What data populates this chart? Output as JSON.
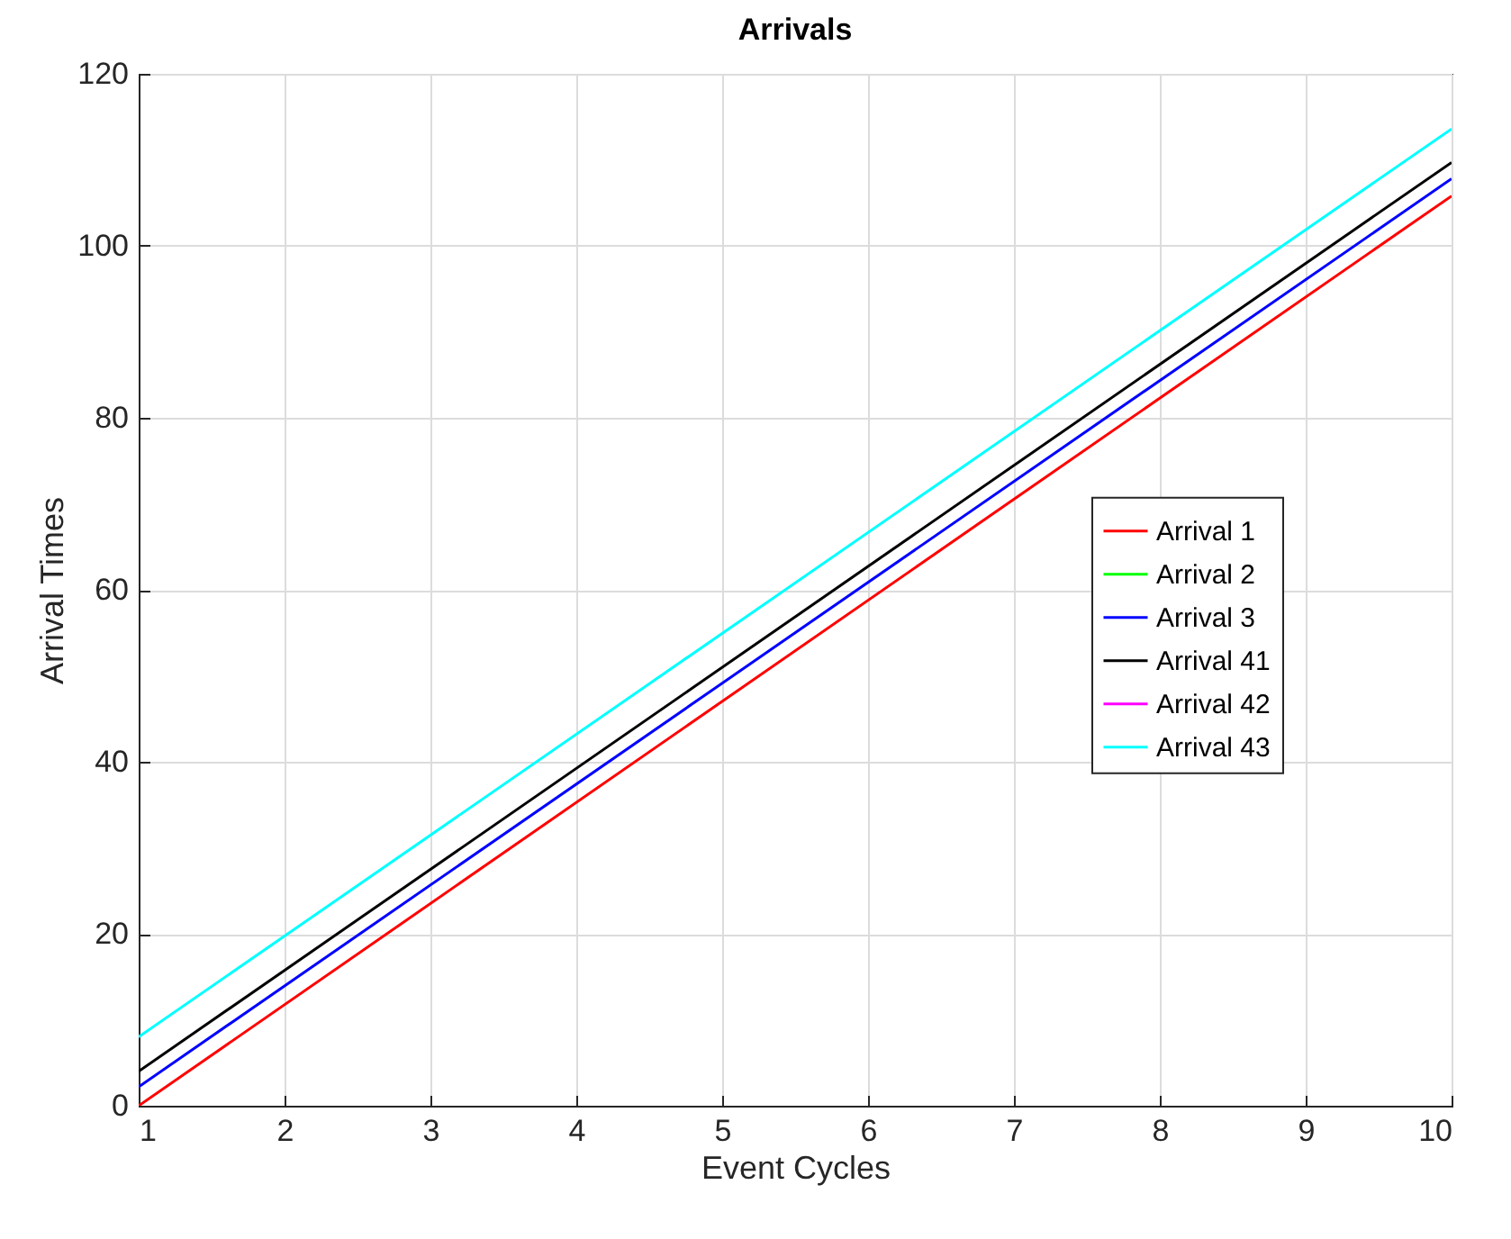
{
  "chart_data": {
    "type": "line",
    "title": "Arrivals",
    "xlabel": "Event Cycles",
    "ylabel": "Arrival Times",
    "x": [
      1,
      10
    ],
    "series": [
      {
        "name": "Arrival 1",
        "color": "#ff0000",
        "values": [
          0,
          105.8
        ]
      },
      {
        "name": "Arrival 2",
        "color": "#00ff00",
        "values": [
          null,
          null
        ]
      },
      {
        "name": "Arrival 3",
        "color": "#0000ff",
        "values": [
          2.2,
          107.8
        ]
      },
      {
        "name": "Arrival 41",
        "color": "#000000",
        "values": [
          4,
          109.7
        ]
      },
      {
        "name": "Arrival 42",
        "color": "#ff00ff",
        "values": [
          null,
          null
        ]
      },
      {
        "name": "Arrival 43",
        "color": "#00ffff",
        "values": [
          8,
          113.6
        ]
      }
    ],
    "xlim": [
      1,
      10
    ],
    "xticks": [
      1,
      2,
      3,
      4,
      5,
      6,
      7,
      8,
      9,
      10
    ],
    "ylim": [
      0,
      120
    ],
    "yticks": [
      0,
      20,
      40,
      60,
      80,
      100,
      120
    ],
    "grid": true,
    "legend": "right",
    "marker": "none",
    "line_style": "solid"
  }
}
